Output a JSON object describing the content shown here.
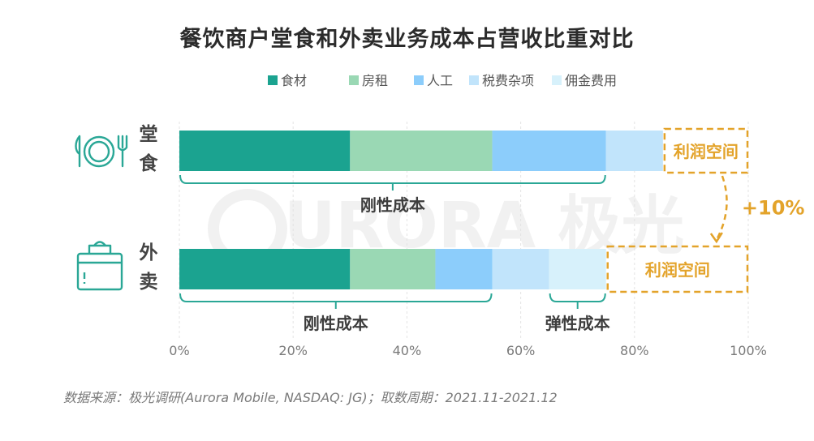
{
  "title": "餐饮商户堂食和外卖业务成本占营收比重对比",
  "source": "数据来源：极光调研(Aurora Mobile, NASDAQ: JG)；取数周期：2021.11-2021.12",
  "watermark": "URORA 极光",
  "colors": {
    "accent": "#e3a32a",
    "bracket": "#2aa796",
    "grid": "#e3e3e3"
  },
  "chart_data": {
    "type": "bar",
    "orientation": "horizontal",
    "stacked": true,
    "categories": [
      "堂食",
      "外卖"
    ],
    "series": [
      {
        "name": "食材",
        "color": "#1ba390",
        "values": [
          30,
          30
        ]
      },
      {
        "name": "房租",
        "color": "#9ad8b4",
        "values": [
          25,
          15
        ]
      },
      {
        "name": "人工",
        "color": "#8ccdfb",
        "values": [
          20,
          10
        ]
      },
      {
        "name": "税费杂项",
        "color": "#c1e4fb",
        "values": [
          10,
          10
        ]
      },
      {
        "name": "佣金费用",
        "color": "#d7f1fb",
        "values": [
          0,
          10
        ]
      }
    ],
    "profit_label": "利润空间",
    "profit_values": [
      15,
      25
    ],
    "delta_label": "+10%",
    "annotations": [
      {
        "category": "堂食",
        "label": "刚性成本",
        "from": 0,
        "to": 75
      },
      {
        "category": "外卖",
        "label": "刚性成本",
        "from": 0,
        "to": 55
      },
      {
        "category": "外卖",
        "label": "弹性成本",
        "from": 65,
        "to": 75
      }
    ],
    "xlim": [
      0,
      100
    ],
    "xticks": [
      "0%",
      "20%",
      "40%",
      "60%",
      "80%",
      "100%"
    ],
    "legend_position": "top",
    "grid": true
  }
}
